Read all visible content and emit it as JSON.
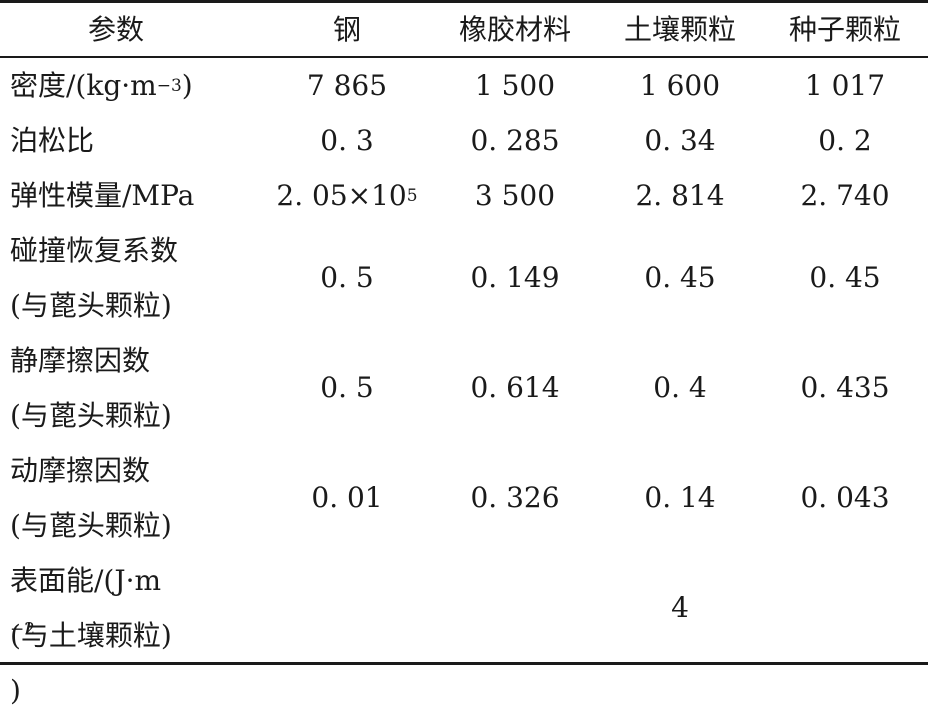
{
  "table": {
    "headers": [
      "参数",
      "钢",
      "橡胶材料",
      "土壤颗粒",
      "种子颗粒"
    ],
    "rows": [
      {
        "label_parts": [
          "密度/(kg·m",
          "−3",
          ")"
        ],
        "values": [
          "7 865",
          "1 500",
          "1 600",
          "1 017"
        ]
      },
      {
        "label": "泊松比",
        "values": [
          "0. 3",
          "0. 285",
          "0. 34",
          "0. 2"
        ]
      },
      {
        "label": "弹性模量/MPa",
        "steel_base": "2. 05×10",
        "steel_exp": "5",
        "values": [
          "3 500",
          "2. 814",
          "2. 740"
        ]
      },
      {
        "label_lines": [
          "碰撞恢复系数",
          "(与蓖头颗粒)"
        ],
        "values": [
          "0. 5",
          "0. 149",
          "0. 45",
          "0. 45"
        ]
      },
      {
        "label_lines": [
          "静摩擦因数",
          "(与蓖头颗粒)"
        ],
        "values": [
          "0. 5",
          "0. 614",
          "0. 4",
          "0. 435"
        ]
      },
      {
        "label_lines": [
          "动摩擦因数",
          "(与蓖头颗粒)"
        ],
        "values": [
          "0. 01",
          "0. 326",
          "0. 14",
          "0. 043"
        ]
      },
      {
        "label_parts": [
          "表面能/(J·m",
          "−2",
          ")"
        ],
        "label_line2": "(与土壤颗粒)",
        "soil_value": "4"
      }
    ]
  }
}
